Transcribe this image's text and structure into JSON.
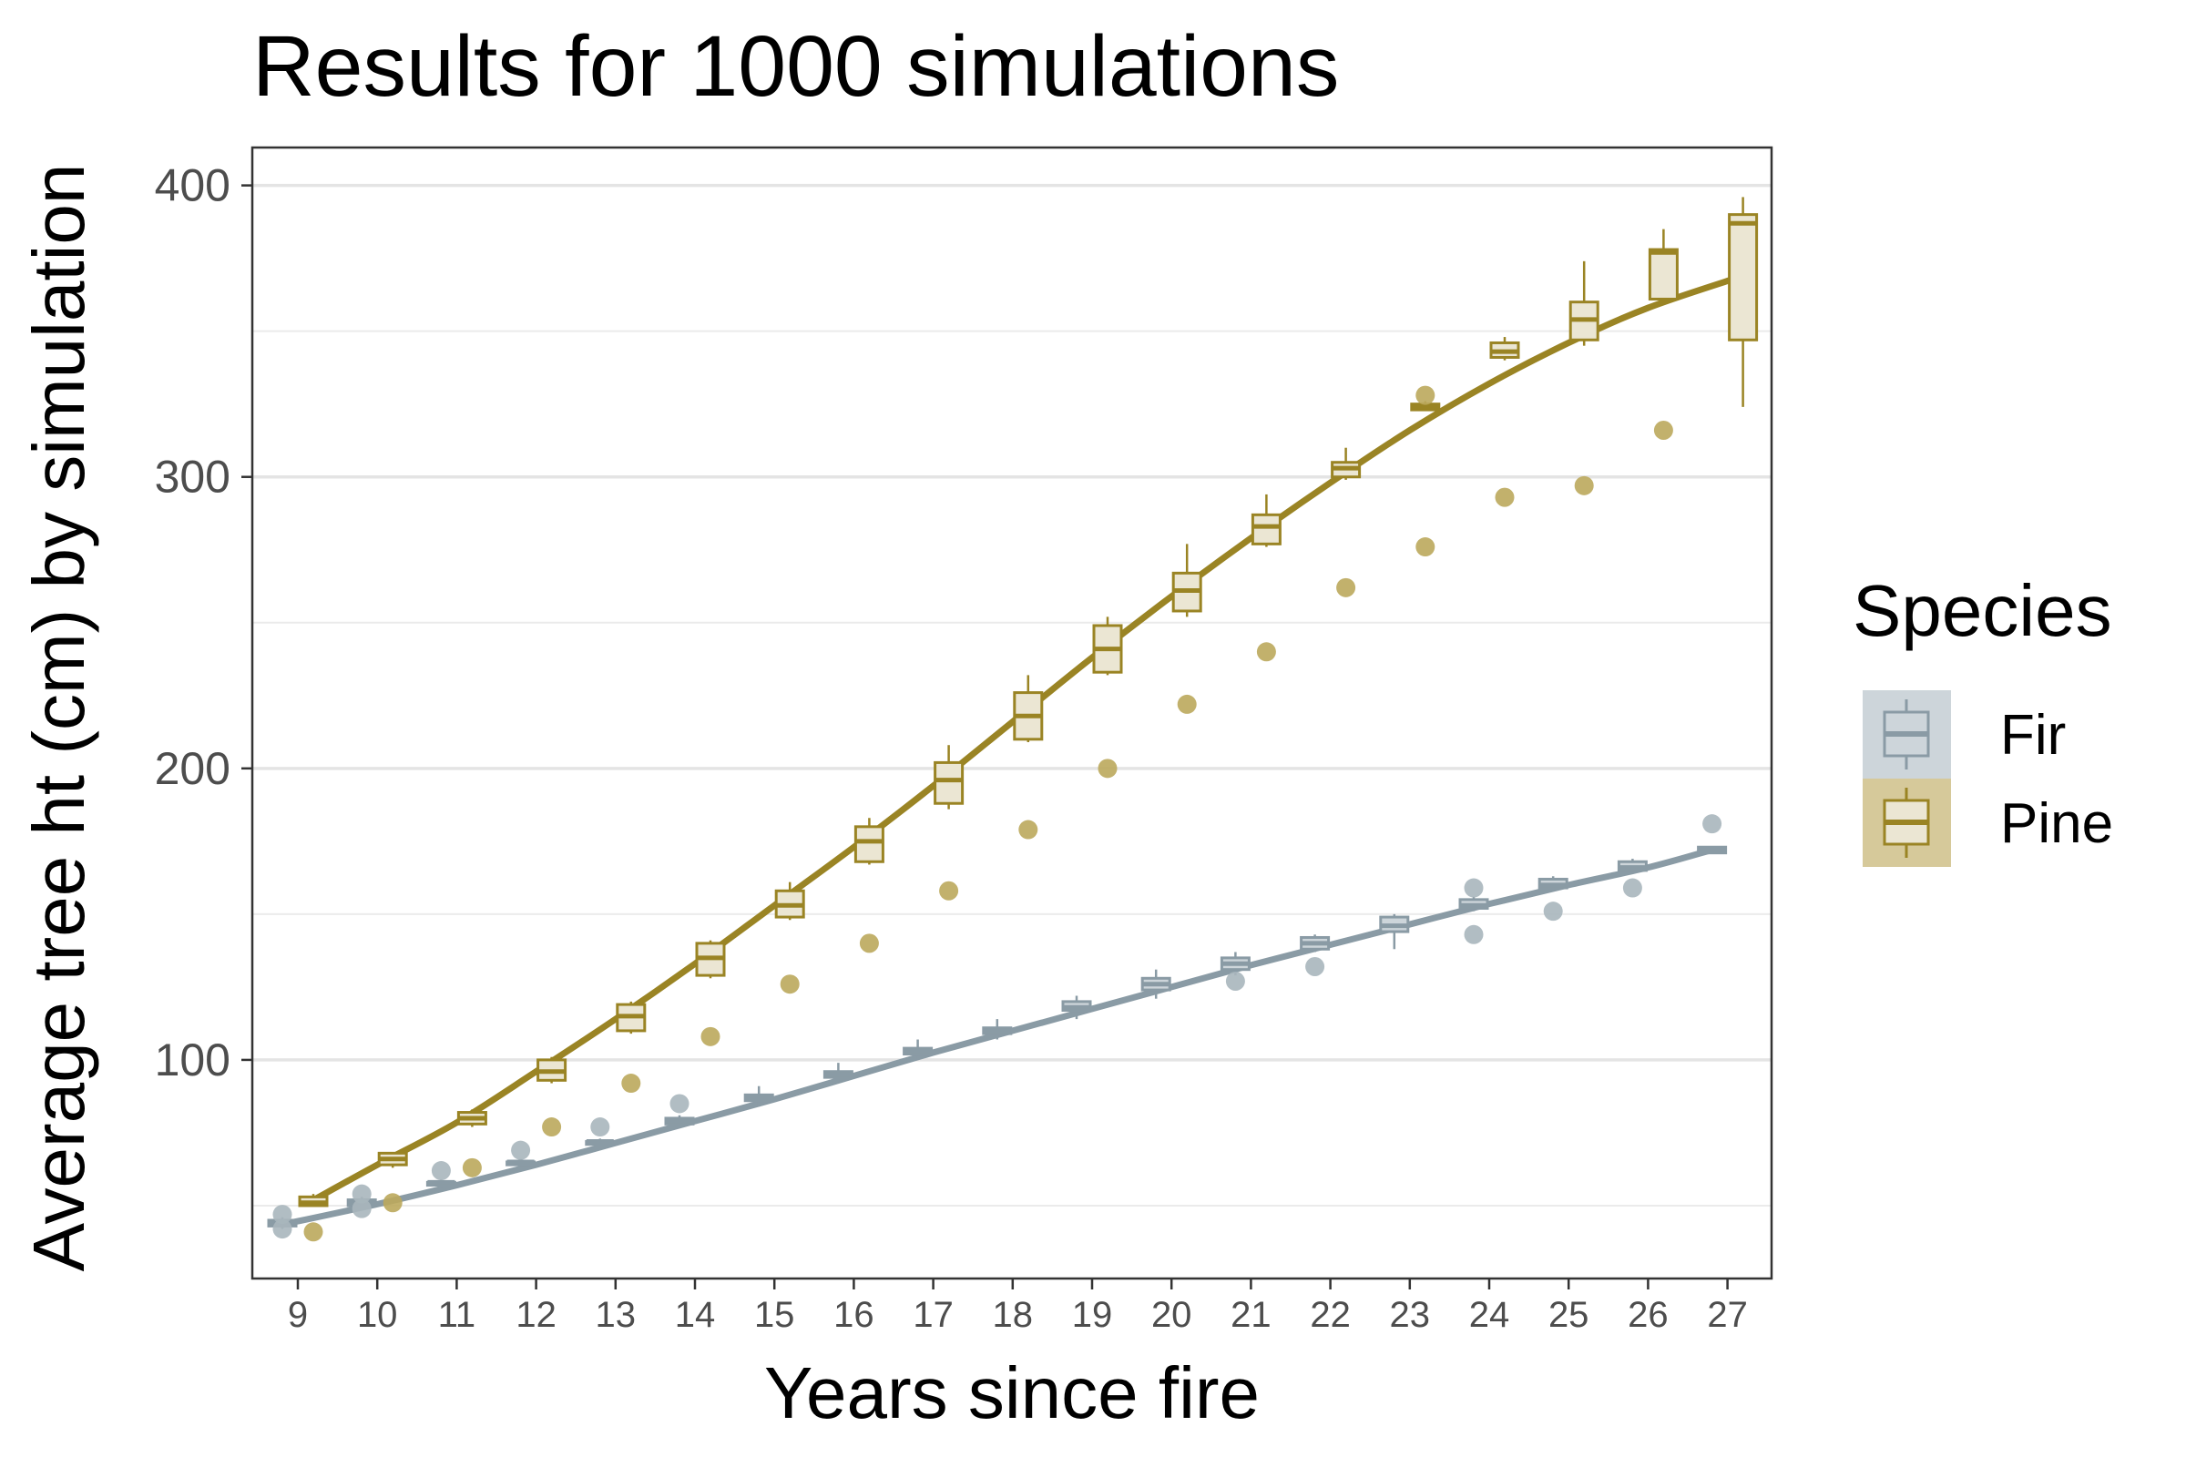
{
  "chart_data": {
    "type": "box",
    "title": "Results for 1000 simulations",
    "xlabel": "Years since fire",
    "ylabel": "Average tree ht (cm) by simulation",
    "ylim": [
      25,
      413
    ],
    "yticks": [
      100,
      200,
      300,
      400
    ],
    "ygrid_minor": [
      50,
      150,
      250,
      350
    ],
    "categories": [
      "9",
      "10",
      "11",
      "12",
      "13",
      "14",
      "15",
      "16",
      "17",
      "18",
      "19",
      "20",
      "21",
      "22",
      "23",
      "24",
      "25",
      "26",
      "27"
    ],
    "grid": true,
    "legend": {
      "title": "Species",
      "position": "right"
    },
    "series": [
      {
        "name": "Fir",
        "color": "#8a9ba5",
        "fill": "#cdd5da",
        "point_color": "#a8b6bd",
        "boxes": [
          {
            "x": 9,
            "lo": 42,
            "q1": 43,
            "med": 44,
            "q3": 45,
            "hi": 46,
            "outliers": [
              42,
              47
            ]
          },
          {
            "x": 10,
            "lo": 49,
            "q1": 50,
            "med": 51,
            "q3": 52,
            "hi": 53,
            "outliers": [
              49,
              54
            ]
          },
          {
            "x": 11,
            "lo": 56,
            "q1": 57,
            "med": 58,
            "q3": 58,
            "hi": 59,
            "outliers": [
              62
            ]
          },
          {
            "x": 12,
            "lo": 63,
            "q1": 64,
            "med": 65,
            "q3": 65,
            "hi": 66,
            "outliers": [
              69
            ]
          },
          {
            "x": 13,
            "lo": 70,
            "q1": 71,
            "med": 72,
            "q3": 72,
            "hi": 73,
            "outliers": [
              77
            ]
          },
          {
            "x": 14,
            "lo": 77,
            "q1": 78,
            "med": 79,
            "q3": 80,
            "hi": 81,
            "outliers": [
              85
            ]
          },
          {
            "x": 15,
            "lo": 84,
            "q1": 86,
            "med": 87,
            "q3": 88,
            "hi": 91,
            "outliers": []
          },
          {
            "x": 16,
            "lo": 92,
            "q1": 94,
            "med": 95,
            "q3": 96,
            "hi": 99,
            "outliers": []
          },
          {
            "x": 17,
            "lo": 100,
            "q1": 102,
            "med": 103,
            "q3": 104,
            "hi": 107,
            "outliers": []
          },
          {
            "x": 18,
            "lo": 107,
            "q1": 109,
            "med": 110,
            "q3": 111,
            "hi": 114,
            "outliers": []
          },
          {
            "x": 19,
            "lo": 114,
            "q1": 117,
            "med": 118,
            "q3": 120,
            "hi": 122,
            "outliers": []
          },
          {
            "x": 20,
            "lo": 121,
            "q1": 124,
            "med": 126,
            "q3": 128,
            "hi": 131,
            "outliers": []
          },
          {
            "x": 21,
            "lo": 129,
            "q1": 131,
            "med": 133,
            "q3": 135,
            "hi": 137,
            "outliers": [
              127
            ]
          },
          {
            "x": 22,
            "lo": 137,
            "q1": 138,
            "med": 140,
            "q3": 142,
            "hi": 143,
            "outliers": [
              132
            ]
          },
          {
            "x": 23,
            "lo": 138,
            "q1": 144,
            "med": 146,
            "q3": 149,
            "hi": 150,
            "outliers": []
          },
          {
            "x": 24,
            "lo": 151,
            "q1": 152,
            "med": 153,
            "q3": 155,
            "hi": 156,
            "outliers": [
              143,
              159
            ]
          },
          {
            "x": 25,
            "lo": 158,
            "q1": 159,
            "med": 160,
            "q3": 162,
            "hi": 163,
            "outliers": [
              151
            ]
          },
          {
            "x": 26,
            "lo": 165,
            "q1": 165,
            "med": 166,
            "q3": 168,
            "hi": 169,
            "outliers": [
              159
            ]
          },
          {
            "x": 27,
            "lo": 171,
            "q1": 171,
            "med": 172,
            "q3": 173,
            "hi": 173,
            "outliers": [
              181
            ]
          }
        ],
        "smooth": [
          [
            8.8,
            43.5
          ],
          [
            10,
            50.5
          ],
          [
            11,
            57
          ],
          [
            12,
            64
          ],
          [
            13,
            71.5
          ],
          [
            14,
            79
          ],
          [
            15,
            86.5
          ],
          [
            16,
            94.5
          ],
          [
            17,
            102.5
          ],
          [
            18,
            110
          ],
          [
            19,
            117.5
          ],
          [
            20,
            125
          ],
          [
            21,
            132.5
          ],
          [
            22,
            139.5
          ],
          [
            23,
            146.5
          ],
          [
            24,
            153.5
          ],
          [
            25,
            160
          ],
          [
            26,
            166
          ],
          [
            26.8,
            172
          ]
        ]
      },
      {
        "name": "Pine",
        "color": "#9a8424",
        "fill": "#ebe6d3",
        "point_color": "#bba85c",
        "boxes": [
          {
            "x": 9,
            "lo": 50,
            "q1": 50,
            "med": 51,
            "q3": 53,
            "hi": 54,
            "outliers": [
              41
            ]
          },
          {
            "x": 10,
            "lo": 63,
            "q1": 64,
            "med": 66,
            "q3": 68,
            "hi": 68,
            "outliers": [
              51
            ]
          },
          {
            "x": 11,
            "lo": 77,
            "q1": 78,
            "med": 80,
            "q3": 82,
            "hi": 83,
            "outliers": [
              63
            ]
          },
          {
            "x": 12,
            "lo": 92,
            "q1": 93,
            "med": 96,
            "q3": 100,
            "hi": 101,
            "outliers": [
              77
            ]
          },
          {
            "x": 13,
            "lo": 109,
            "q1": 110,
            "med": 115,
            "q3": 119,
            "hi": 120,
            "outliers": [
              92
            ]
          },
          {
            "x": 14,
            "lo": 128,
            "q1": 129,
            "med": 135,
            "q3": 140,
            "hi": 141,
            "outliers": [
              108
            ]
          },
          {
            "x": 15,
            "lo": 148,
            "q1": 149,
            "med": 153,
            "q3": 158,
            "hi": 161,
            "outliers": [
              126
            ]
          },
          {
            "x": 16,
            "lo": 167,
            "q1": 168,
            "med": 175,
            "q3": 180,
            "hi": 183,
            "outliers": [
              140
            ]
          },
          {
            "x": 17,
            "lo": 186,
            "q1": 188,
            "med": 196,
            "q3": 202,
            "hi": 208,
            "outliers": [
              158
            ]
          },
          {
            "x": 18,
            "lo": 209,
            "q1": 210,
            "med": 218,
            "q3": 226,
            "hi": 232,
            "outliers": [
              179
            ]
          },
          {
            "x": 19,
            "lo": 232,
            "q1": 233,
            "med": 241,
            "q3": 249,
            "hi": 252,
            "outliers": [
              200
            ]
          },
          {
            "x": 20,
            "lo": 252,
            "q1": 254,
            "med": 261,
            "q3": 267,
            "hi": 277,
            "outliers": [
              222
            ]
          },
          {
            "x": 21,
            "lo": 276,
            "q1": 277,
            "med": 283,
            "q3": 287,
            "hi": 294,
            "outliers": [
              240
            ]
          },
          {
            "x": 22,
            "lo": 299,
            "q1": 300,
            "med": 303,
            "q3": 305,
            "hi": 310,
            "outliers": [
              262
            ]
          },
          {
            "x": 23,
            "lo": 323,
            "q1": 323,
            "med": 324,
            "q3": 325,
            "hi": 326,
            "outliers": [
              276,
              328
            ]
          },
          {
            "x": 24,
            "lo": 340,
            "q1": 341,
            "med": 343,
            "q3": 346,
            "hi": 348,
            "outliers": [
              293
            ]
          },
          {
            "x": 25,
            "lo": 345,
            "q1": 347,
            "med": 354,
            "q3": 360,
            "hi": 374,
            "outliers": [
              297
            ]
          },
          {
            "x": 26,
            "lo": 360,
            "q1": 361,
            "med": 377,
            "q3": 378,
            "hi": 385,
            "outliers": [
              316
            ]
          },
          {
            "x": 27,
            "lo": 324,
            "q1": 347,
            "med": 387,
            "q3": 390,
            "hi": 396,
            "outliers": []
          }
        ],
        "smooth": [
          [
            9.2,
            52
          ],
          [
            10,
            64
          ],
          [
            11,
            78.5
          ],
          [
            12,
            96
          ],
          [
            13,
            114
          ],
          [
            14,
            133
          ],
          [
            15,
            153
          ],
          [
            16,
            173
          ],
          [
            17,
            194
          ],
          [
            18,
            216
          ],
          [
            19,
            238
          ],
          [
            20,
            259
          ],
          [
            21,
            279
          ],
          [
            22,
            298
          ],
          [
            23,
            316
          ],
          [
            24,
            332
          ],
          [
            25,
            346
          ],
          [
            26,
            358
          ],
          [
            27.2,
            369
          ]
        ]
      }
    ]
  }
}
